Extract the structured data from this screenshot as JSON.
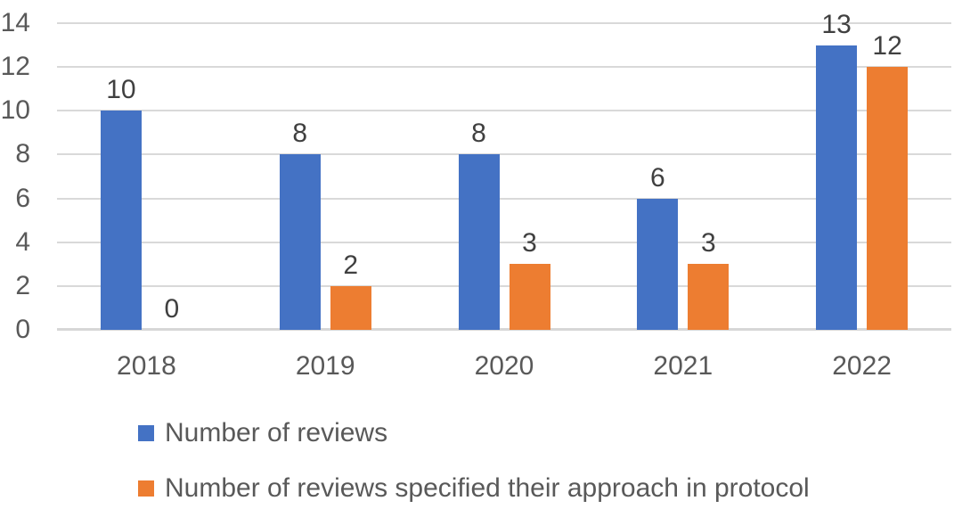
{
  "chart_data": {
    "type": "bar",
    "title": "",
    "categories": [
      "2018",
      "2019",
      "2020",
      "2021",
      "2022"
    ],
    "series": [
      {
        "name": "Number of reviews",
        "color": "#4472C4",
        "values": [
          10,
          8,
          8,
          6,
          13
        ]
      },
      {
        "name": "Number of reviews specified their approach in protocol",
        "color": "#ED7D31",
        "values": [
          0,
          2,
          3,
          3,
          12
        ]
      }
    ],
    "xlabel": "",
    "ylabel": "",
    "ylim": [
      0,
      14
    ],
    "y_axis": {
      "min": 0,
      "max": 14,
      "tick_interval": 2,
      "ticks": [
        0,
        2,
        4,
        6,
        8,
        10,
        12,
        14
      ]
    },
    "grid": true,
    "data_labels": true,
    "legend_position": "bottom-left"
  },
  "colors": {
    "series_blue": "#4472C4",
    "series_orange": "#ED7D31",
    "gridline": "#D9D9D9",
    "axis_line": "#D7D7D7",
    "tick_label": "#595959",
    "data_label": "#404040",
    "legend_text": "#595959",
    "background": "#FFFFFF"
  }
}
